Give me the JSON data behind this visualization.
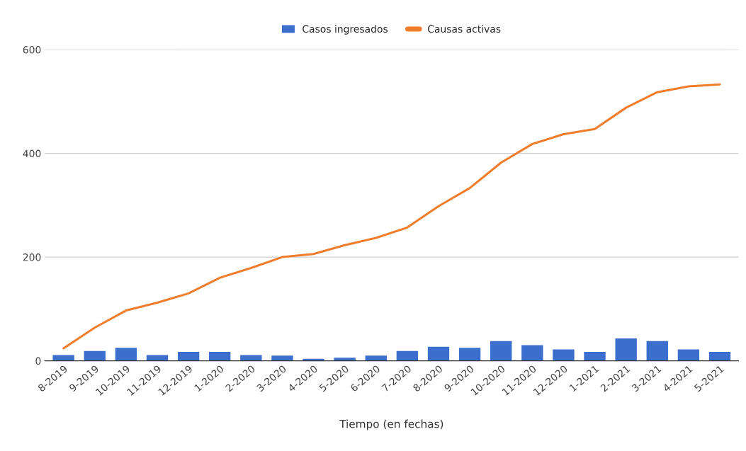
{
  "chart_data": {
    "type": "bar",
    "xlabel": "Tiempo (en fechas)",
    "categories": [
      "8-2019",
      "9-2019",
      "10-2019",
      "11-2019",
      "12-2019",
      "1-2020",
      "2-2020",
      "3-2020",
      "4-2020",
      "5-2020",
      "6-2020",
      "7-2020",
      "8-2020",
      "9-2020",
      "10-2020",
      "11-2020",
      "12-2020",
      "1-2021",
      "2-2021",
      "3-2021",
      "4-2021",
      "5-2021"
    ],
    "series": [
      {
        "name": "Casos ingresados",
        "color": "#3c6fcd",
        "values": [
          12,
          20,
          26,
          12,
          18,
          18,
          12,
          11,
          5,
          7,
          11,
          20,
          28,
          26,
          39,
          31,
          23,
          18,
          44,
          39,
          23,
          18
        ]
      },
      {
        "name": "Causas activas",
        "type": "line",
        "color": "#ef7d2b",
        "values": [
          24,
          64,
          97,
          112,
          130,
          160,
          179,
          200,
          206,
          223,
          237,
          257,
          298,
          333,
          382,
          418,
          437,
          447,
          488,
          518,
          529,
          533
        ]
      }
    ],
    "ylim": [
      0,
      600
    ],
    "yticks": [
      0,
      200,
      400,
      600
    ],
    "grid": "y",
    "legend": "top"
  }
}
